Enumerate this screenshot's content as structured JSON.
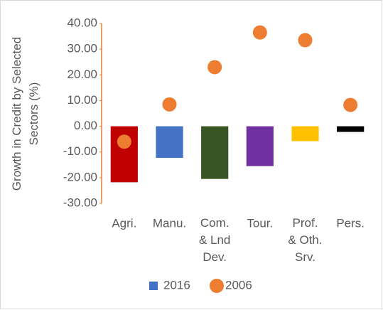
{
  "chart_data": {
    "type": "bar",
    "y_label": "Growth in Credit by Selected\nSectors (%)",
    "categories": [
      "Agri.",
      "Manu.",
      "Com.\n& Lnd\nDev.",
      "Tour.",
      "Prof.\n& Oth.\nSrv.",
      "Pers."
    ],
    "series": [
      {
        "name": "2016",
        "type": "bar",
        "color": "#4472c4",
        "point_colors": [
          "#c00000",
          "#4472c4",
          "#375623",
          "#7030a0",
          "#ffc000",
          "#000000"
        ],
        "values": [
          -21.8,
          -12.3,
          -20.5,
          -15.5,
          -5.8,
          -2.2
        ]
      },
      {
        "name": "2006",
        "type": "scatter",
        "color": "#ed7d31",
        "values": [
          -6,
          8.5,
          23,
          36.5,
          33.5,
          8.3
        ]
      }
    ],
    "ylim": [
      -30,
      40
    ],
    "yticks": [
      {
        "value": -30,
        "label": "-30.00"
      },
      {
        "value": -20,
        "label": "-20.00"
      },
      {
        "value": -10,
        "label": "-10.00"
      },
      {
        "value": 0,
        "label": "0.00"
      },
      {
        "value": 10,
        "label": "10.00"
      },
      {
        "value": 20,
        "label": "20.00"
      },
      {
        "value": 30,
        "label": "30.00"
      },
      {
        "value": 40,
        "label": "40.00"
      }
    ],
    "axis_color": "#ed7d31",
    "legend": "bottom"
  }
}
